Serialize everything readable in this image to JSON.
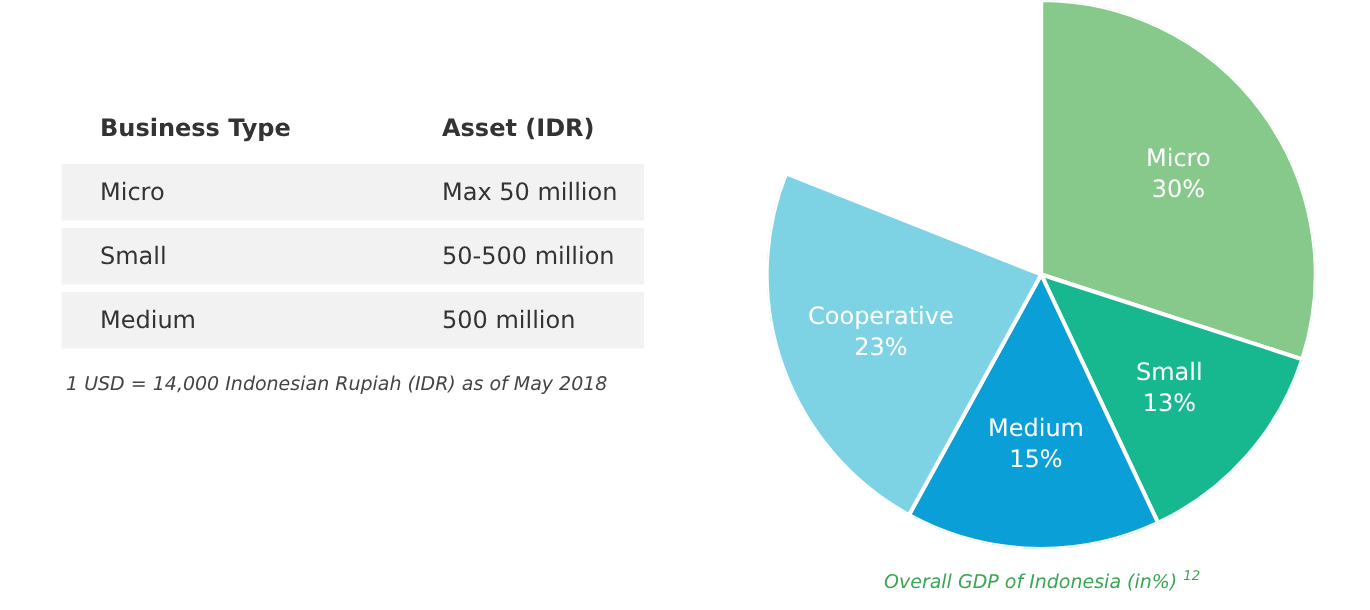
{
  "chart_data": [
    {
      "type": "other",
      "annotations": [
        "Business Type",
        "Asset (IDR)",
        "Micro",
        "Max 50 million",
        "Small",
        "50-500 million",
        "Medium",
        "500 million",
        "1 USD = 14,000 Indonesian Rupiah (IDR) as of May 2018"
      ]
    },
    {
      "type": "pie",
      "title": "Overall GDP of Indonesia (in%) $^{12}$",
      "categories": [
        "Micro",
        "Small",
        "Medium",
        "Cooperative"
      ],
      "values": [
        30,
        13,
        15,
        23
      ],
      "colors": [
        "#86c98a",
        "#17b890",
        "#0a9fd6",
        "#7dd3e4"
      ],
      "value_labels": [
        "30%",
        "13%",
        "15%",
        "23%"
      ]
    }
  ]
}
